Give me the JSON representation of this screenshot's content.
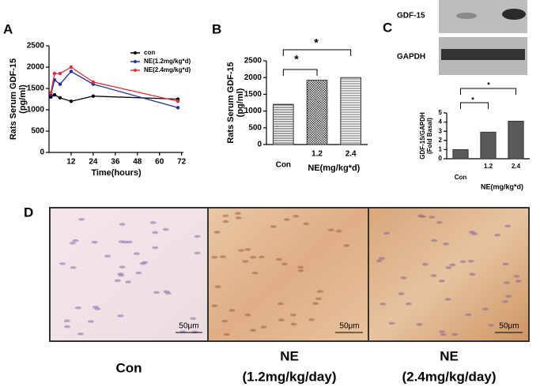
{
  "panel_labels": [
    "A",
    "B",
    "C",
    "D"
  ],
  "chart_data": [
    {
      "type": "line",
      "y_label": [
        "Rats Serum GDF-15",
        "(pg/ml)"
      ],
      "x_label": "Time(hours)",
      "x": [
        1,
        3,
        6,
        12,
        24,
        70
      ],
      "series": [
        {
          "name": "con",
          "color": "#000000",
          "values": [
            1300,
            1350,
            1280,
            1200,
            1320,
            1250
          ]
        },
        {
          "name": "NE(1.2mg/kg*d)",
          "color": "#1f2f9f",
          "values": [
            1350,
            1700,
            1600,
            1900,
            1600,
            1050
          ]
        },
        {
          "name": "NE(2.4mg/kg*d)",
          "color": "#e0303a",
          "values": [
            1400,
            1850,
            1850,
            2000,
            1650,
            1200
          ]
        }
      ],
      "xlim": [
        0,
        73
      ],
      "xticks": [
        12,
        24,
        36,
        48,
        60,
        72
      ],
      "ylim": [
        0,
        2500
      ],
      "yticks": [
        0,
        500,
        1000,
        1500,
        2000,
        2500
      ]
    },
    {
      "type": "bar",
      "y_label": [
        "Rats Serum  GDF-15",
        "(pg/ml)"
      ],
      "x_label": "NE(mg/kg*d)",
      "categories": [
        "Con",
        "1.2",
        "2.4"
      ],
      "values": [
        1200,
        1920,
        2000
      ],
      "color": "#555555",
      "annotations": [
        "*",
        "*"
      ],
      "ylim": [
        0,
        2500
      ],
      "yticks": [
        0,
        500,
        1000,
        1500,
        2000,
        2500
      ]
    },
    {
      "type": "bar",
      "y_label": [
        "GDF-15/GAPDH",
        "(Fold Basal)"
      ],
      "x_label": "NE(mg/kg*d)",
      "categories": [
        "Con",
        "1.2",
        "2.4"
      ],
      "values": [
        1,
        2.9,
        4.1
      ],
      "color": "#5a5a5a",
      "annotations": [
        "*",
        "*"
      ],
      "ylim": [
        0,
        5
      ],
      "yticks": [
        0,
        1,
        2,
        3,
        4,
        5
      ]
    }
  ],
  "blot": {
    "labels": [
      "GDF-15",
      "GAPDH"
    ]
  },
  "histology": {
    "scale_bars": [
      "50μm",
      "50μm",
      "50μm"
    ],
    "captions": [
      [
        "Con"
      ],
      [
        "NE",
        "(1.2mg/kg/day)"
      ],
      [
        "NE",
        "(2.4mg/kg/day)"
      ]
    ]
  }
}
